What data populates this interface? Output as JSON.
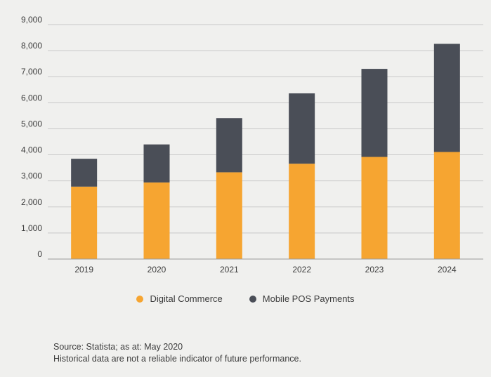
{
  "chart_data": {
    "type": "bar",
    "stacked": true,
    "categories": [
      "2019",
      "2020",
      "2021",
      "2022",
      "2023",
      "2024"
    ],
    "series": [
      {
        "name": "Digital Commerce",
        "color": "#f6a531",
        "values": [
          2780,
          2940,
          3330,
          3660,
          3920,
          4110
        ]
      },
      {
        "name": "Mobile POS Payments",
        "color": "#4a4e57",
        "values": [
          1070,
          1460,
          2080,
          2700,
          3380,
          4150
        ]
      }
    ],
    "yticks": [
      "0",
      "1,000",
      "2,000",
      "3,000",
      "4,000",
      "5,000",
      "6,000",
      "7,000",
      "8,000",
      "9,000"
    ],
    "ylim": [
      0,
      9000
    ],
    "grid": true,
    "legend_position": "bottom-center"
  },
  "footer": {
    "source": "Source: Statista; as at: May 2020",
    "disclaimer": "Historical data are not a reliable indicator of future performance."
  },
  "colors": {
    "background": "#f0f0ee",
    "gridline": "#c8c8c8",
    "axis": "#9a9a9a"
  }
}
